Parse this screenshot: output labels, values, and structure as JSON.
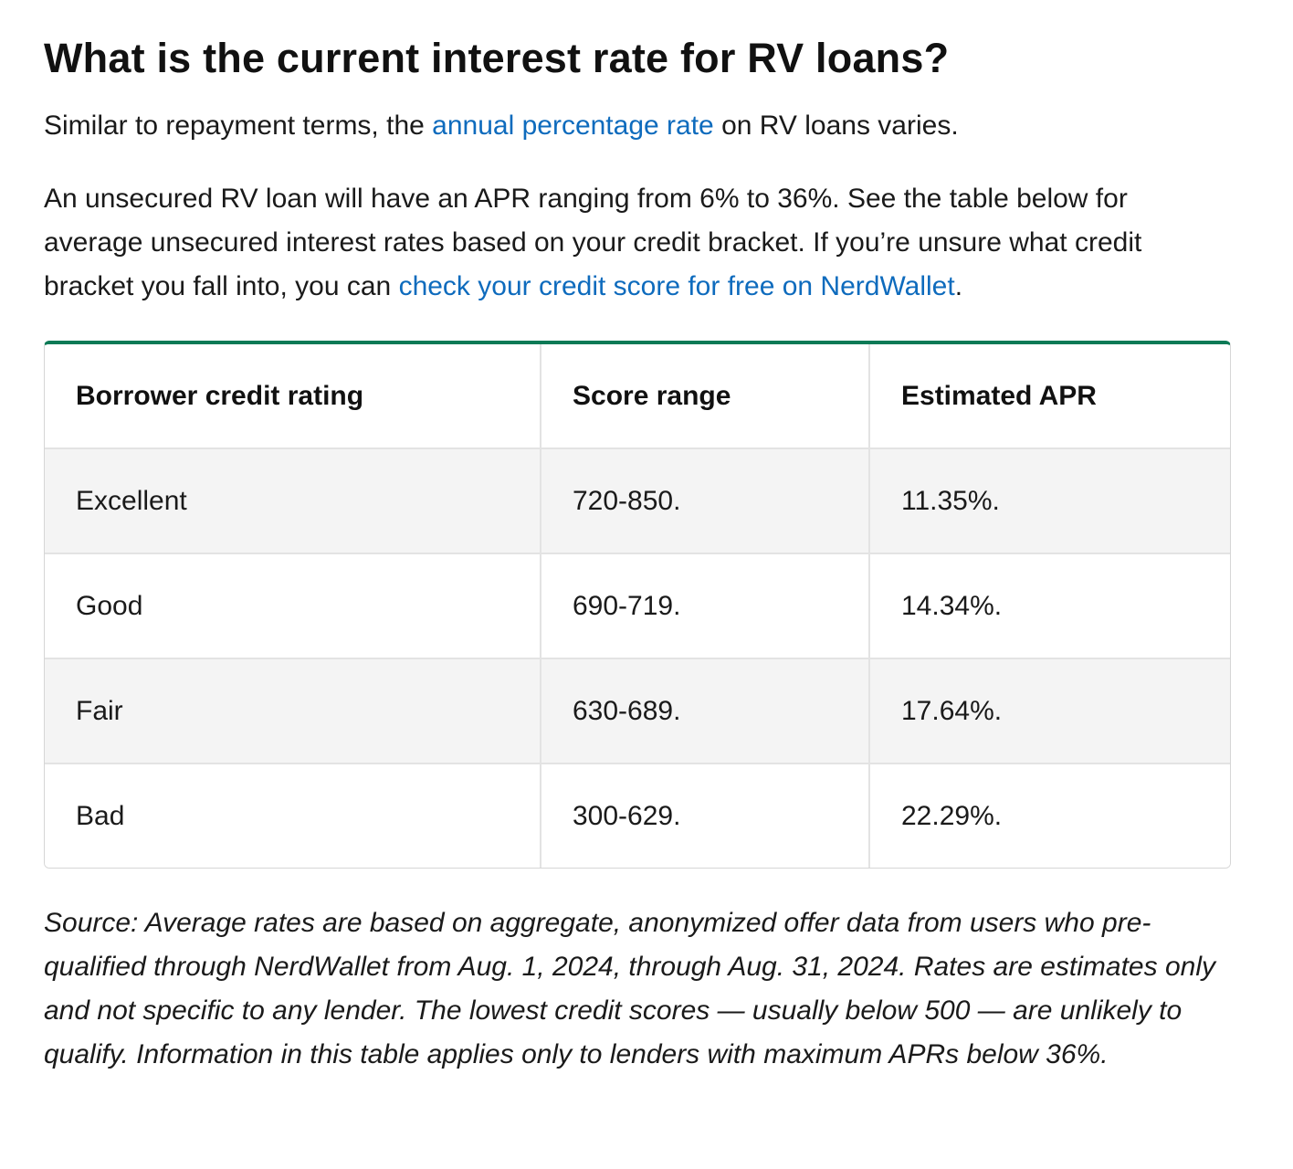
{
  "heading": "What is the current interest rate for RV loans?",
  "intro": {
    "text_before": "Similar to repayment terms, the ",
    "link_text": "annual percentage rate",
    "text_after": " on RV loans varies."
  },
  "detail": {
    "text_before": "An unsecured RV loan will have an APR ranging from 6% to 36%. See the table below for average unsecured interest rates based on your credit bracket. If you’re unsure what credit bracket you fall into, you can ",
    "link_text": "check your credit score for free on NerdWallet",
    "text_after": "."
  },
  "table": {
    "headers": [
      "Borrower credit rating",
      "Score range",
      "Estimated APR"
    ],
    "rows": [
      [
        "Excellent",
        "720-850.",
        "11.35%."
      ],
      [
        "Good",
        "690-719.",
        "14.34%."
      ],
      [
        "Fair",
        "630-689.",
        "17.64%."
      ],
      [
        "Bad",
        "300-629.",
        "22.29%."
      ]
    ]
  },
  "source_note": "Source: Average rates are based on aggregate, anonymized offer data from users who pre-qualified through NerdWallet from Aug. 1, 2024, through Aug. 31, 2024. Rates are estimates only and not specific to any lender. The lowest credit scores — usually below 500 — are unlikely to qualify. Information in this table applies only to lenders with maximum APRs below 36%.",
  "colors": {
    "link": "#0e6bbd",
    "table_accent": "#0c7a56",
    "row_stripe": "#f4f4f4"
  }
}
